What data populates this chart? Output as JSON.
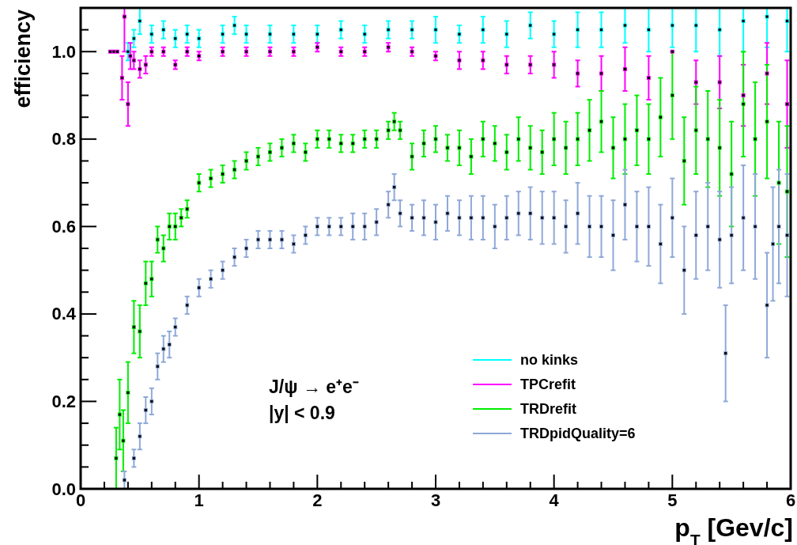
{
  "chart_data": {
    "type": "scatter",
    "xlabel": "p$_{T}$ [Gev/c]",
    "ylabel": "efficiency",
    "xlim": [
      0,
      6
    ],
    "ylim": [
      0,
      1.1
    ],
    "xticks": [
      0,
      1,
      2,
      3,
      4,
      5,
      6
    ],
    "yticks": [
      {
        "value": 0,
        "label": "0.0"
      },
      0.2,
      0.4,
      0.6,
      0.8,
      {
        "value": 1,
        "label": "1.0"
      }
    ],
    "grid": false,
    "legend": "bottom right",
    "marker": "square",
    "annotations": [
      "J/ψ → e⁺e⁻",
      "|y| < 0.9"
    ],
    "series": [
      {
        "name": "no kinks",
        "color": "#00ffff",
        "x": [
          0.4,
          0.45,
          0.5,
          0.6,
          0.7,
          0.8,
          0.9,
          1.0,
          1.2,
          1.3,
          1.4,
          1.6,
          1.8,
          2.0,
          2.2,
          2.4,
          2.6,
          2.8,
          3.0,
          3.2,
          3.4,
          3.6,
          3.8,
          4.0,
          4.2,
          4.4,
          4.6,
          4.8,
          5.0,
          5.2,
          5.4,
          5.6,
          5.8,
          5.97
        ],
        "values": [
          1.0,
          1.03,
          1.07,
          1.04,
          1.05,
          1.03,
          1.04,
          1.03,
          1.04,
          1.06,
          1.04,
          1.04,
          1.04,
          1.04,
          1.05,
          1.04,
          1.05,
          1.05,
          1.05,
          1.04,
          1.05,
          1.04,
          1.06,
          1.04,
          1.05,
          1.05,
          1.06,
          1.05,
          1.06,
          1.06,
          1.05,
          1.07,
          1.08,
          1.07
        ],
        "errors": [
          0.02,
          0.02,
          0.03,
          0.02,
          0.02,
          0.02,
          0.02,
          0.02,
          0.02,
          0.02,
          0.02,
          0.02,
          0.02,
          0.02,
          0.02,
          0.02,
          0.02,
          0.02,
          0.03,
          0.02,
          0.03,
          0.03,
          0.03,
          0.03,
          0.04,
          0.04,
          0.04,
          0.05,
          [
            1.01,
            1.1
          ],
          [
            1.0,
            1.1
          ],
          [
            0.99,
            1.1
          ],
          [
            1.0,
            1.1
          ],
          [
            1.01,
            1.1
          ],
          [
            1.0,
            1.1
          ]
        ]
      },
      {
        "name": "TPCrefit",
        "color": "#ff00ff",
        "x": [
          0.25,
          0.28,
          0.31,
          0.35,
          0.37,
          0.4,
          0.42,
          0.45,
          0.5,
          0.55,
          0.6,
          0.7,
          0.8,
          0.9,
          1.0,
          1.2,
          1.4,
          1.6,
          1.8,
          2.0,
          2.2,
          2.4,
          2.6,
          2.8,
          3.0,
          3.2,
          3.4,
          3.6,
          3.8,
          4.0,
          4.2,
          4.4,
          4.6,
          4.8,
          5.0,
          5.2,
          5.4,
          5.6,
          5.8,
          5.97
        ],
        "values": [
          1.0,
          1.0,
          1.0,
          0.94,
          1.08,
          0.88,
          0.99,
          0.98,
          0.96,
          0.97,
          1.0,
          1.0,
          0.97,
          1.0,
          0.99,
          1.0,
          1.0,
          1.0,
          1.0,
          1.01,
          1.0,
          1.0,
          1.01,
          1.0,
          0.99,
          0.98,
          0.98,
          0.97,
          0.97,
          0.97,
          0.95,
          0.95,
          0.96,
          0.94,
          1.0,
          0.93,
          0.93,
          0.9,
          0.95,
          0.88
        ],
        "errors": [
          0,
          0,
          0,
          0.05,
          [
            1.0,
            1.1
          ],
          0.05,
          0.03,
          0.02,
          0.02,
          0.02,
          0.01,
          0.01,
          0.01,
          0.01,
          0.01,
          0.01,
          0.01,
          0.01,
          0.01,
          0.01,
          0.01,
          0.01,
          0.01,
          0.01,
          0.01,
          0.02,
          0.02,
          0.02,
          0.02,
          0.03,
          0.03,
          0.04,
          0.05,
          0.05,
          0,
          0.05,
          0.06,
          0.07,
          0.07,
          0.1
        ]
      },
      {
        "name": "TRDrefit",
        "color": "#00ee00",
        "x": [
          0.3,
          0.33,
          0.36,
          0.4,
          0.45,
          0.5,
          0.55,
          0.6,
          0.65,
          0.7,
          0.75,
          0.8,
          0.85,
          0.9,
          1.0,
          1.1,
          1.2,
          1.3,
          1.4,
          1.5,
          1.6,
          1.7,
          1.8,
          1.9,
          2.0,
          2.1,
          2.2,
          2.3,
          2.4,
          2.5,
          2.6,
          2.65,
          2.7,
          2.8,
          2.9,
          3.0,
          3.1,
          3.2,
          3.3,
          3.4,
          3.5,
          3.6,
          3.7,
          3.8,
          3.9,
          4.0,
          4.1,
          4.2,
          4.3,
          4.4,
          4.5,
          4.6,
          4.7,
          4.8,
          4.9,
          5.0,
          5.1,
          5.2,
          5.3,
          5.4,
          5.5,
          5.6,
          5.7,
          5.8,
          5.9,
          5.97
        ],
        "values": [
          0.07,
          0.17,
          0.11,
          0.22,
          0.37,
          0.36,
          0.47,
          0.48,
          0.57,
          0.55,
          0.6,
          0.6,
          0.62,
          0.64,
          0.7,
          0.71,
          0.72,
          0.73,
          0.75,
          0.76,
          0.77,
          0.78,
          0.79,
          0.77,
          0.8,
          0.8,
          0.79,
          0.79,
          0.8,
          0.8,
          0.82,
          0.84,
          0.82,
          0.76,
          0.79,
          0.8,
          0.78,
          0.78,
          0.76,
          0.8,
          0.79,
          0.77,
          0.8,
          0.78,
          0.77,
          0.8,
          0.78,
          0.8,
          0.82,
          0.84,
          0.78,
          0.8,
          0.82,
          0.8,
          0.85,
          0.9,
          0.75,
          0.82,
          0.8,
          0.78,
          0.72,
          0.88,
          0.8,
          0.84,
          0.7,
          0.68
        ],
        "errors": [
          0.07,
          0.08,
          0.07,
          0.07,
          0.06,
          0.06,
          0.05,
          0.04,
          0.03,
          0.03,
          0.03,
          0.03,
          0.02,
          0.02,
          0.02,
          0.02,
          0.02,
          0.02,
          0.02,
          0.02,
          0.02,
          0.02,
          0.02,
          0.02,
          0.02,
          0.02,
          0.02,
          0.02,
          0.02,
          0.02,
          0.02,
          0.02,
          0.02,
          0.03,
          0.03,
          0.03,
          0.03,
          0.04,
          0.04,
          0.04,
          0.04,
          0.04,
          0.05,
          0.05,
          0.05,
          0.06,
          0.06,
          0.06,
          0.07,
          0.07,
          0.07,
          0.08,
          0.08,
          0.08,
          0.09,
          0.1,
          0.1,
          0.1,
          0.11,
          0.11,
          0.12,
          0.12,
          0.13,
          0.13,
          0.14,
          0.15
        ]
      },
      {
        "name": "TRDpidQuality=6",
        "color": "#8ea8d8",
        "x": [
          0.37,
          0.45,
          0.5,
          0.55,
          0.6,
          0.65,
          0.7,
          0.75,
          0.8,
          0.9,
          1.0,
          1.1,
          1.2,
          1.3,
          1.4,
          1.5,
          1.6,
          1.7,
          1.8,
          1.9,
          2.0,
          2.1,
          2.2,
          2.3,
          2.4,
          2.5,
          2.6,
          2.65,
          2.7,
          2.8,
          2.9,
          3.0,
          3.1,
          3.2,
          3.3,
          3.4,
          3.5,
          3.6,
          3.7,
          3.8,
          3.9,
          4.0,
          4.1,
          4.2,
          4.3,
          4.4,
          4.5,
          4.6,
          4.7,
          4.8,
          4.9,
          5.0,
          5.1,
          5.2,
          5.3,
          5.4,
          5.45,
          5.5,
          5.6,
          5.7,
          5.8,
          5.85,
          5.9,
          5.97
        ],
        "values": [
          0.02,
          0.07,
          0.12,
          0.18,
          0.2,
          0.28,
          0.32,
          0.33,
          0.37,
          0.42,
          0.46,
          0.48,
          0.5,
          0.53,
          0.55,
          0.57,
          0.57,
          0.57,
          0.56,
          0.58,
          0.6,
          0.6,
          0.6,
          0.6,
          0.6,
          0.61,
          0.65,
          0.69,
          0.63,
          0.62,
          0.62,
          0.61,
          0.63,
          0.62,
          0.62,
          0.62,
          0.6,
          0.62,
          0.63,
          0.63,
          0.62,
          0.62,
          0.6,
          0.63,
          0.6,
          0.6,
          0.58,
          0.65,
          0.6,
          0.6,
          0.56,
          0.62,
          0.5,
          0.58,
          0.6,
          0.57,
          0.31,
          0.58,
          0.62,
          0.6,
          0.42,
          0.56,
          0.6,
          0.58
        ],
        "errors": [
          0.02,
          0.02,
          0.03,
          0.03,
          0.03,
          0.03,
          0.03,
          0.03,
          0.02,
          0.02,
          0.02,
          0.02,
          0.02,
          0.02,
          0.02,
          0.02,
          0.02,
          0.02,
          0.02,
          0.02,
          0.02,
          0.02,
          0.02,
          0.03,
          0.03,
          0.03,
          0.03,
          0.03,
          0.03,
          0.03,
          0.04,
          0.04,
          0.04,
          0.04,
          0.05,
          0.05,
          0.05,
          0.05,
          0.05,
          0.06,
          0.06,
          0.06,
          0.06,
          0.07,
          0.07,
          0.07,
          0.08,
          0.08,
          0.08,
          0.09,
          0.09,
          0.09,
          0.1,
          0.1,
          0.1,
          0.11,
          0.11,
          0.11,
          0.12,
          0.12,
          0.12,
          0.13,
          0.13,
          0.14
        ]
      }
    ]
  }
}
